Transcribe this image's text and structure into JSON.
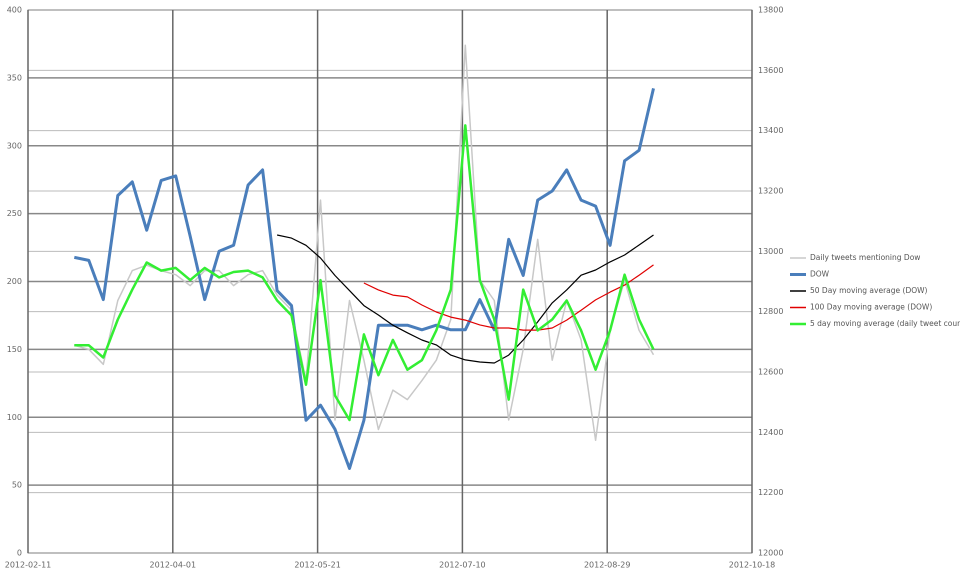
{
  "chart_data": {
    "type": "line",
    "x": [
      "2012-02-27",
      "2012-03-03",
      "2012-03-08",
      "2012-03-13",
      "2012-03-18",
      "2012-03-23",
      "2012-03-28",
      "2012-04-02",
      "2012-04-07",
      "2012-04-12",
      "2012-04-17",
      "2012-04-22",
      "2012-04-27",
      "2012-05-02",
      "2012-05-07",
      "2012-05-12",
      "2012-05-17",
      "2012-05-22",
      "2012-05-27",
      "2012-06-01",
      "2012-06-06",
      "2012-06-11",
      "2012-06-16",
      "2012-06-21",
      "2012-06-26",
      "2012-07-01",
      "2012-07-06",
      "2012-07-11",
      "2012-07-16",
      "2012-07-21",
      "2012-07-26",
      "2012-07-31",
      "2012-08-05",
      "2012-08-10",
      "2012-08-15",
      "2012-08-20",
      "2012-08-25",
      "2012-08-30",
      "2012-09-04",
      "2012-09-09",
      "2012-09-14"
    ],
    "series": [
      {
        "name": "Daily tweets mentioning Dow",
        "color": "#c8c8c8",
        "width": 1.5,
        "values": [
          153,
          150,
          139,
          186,
          208,
          212,
          208,
          205,
          197,
          208,
          208,
          197,
          205,
          208,
          190,
          179,
          127,
          260,
          98,
          186,
          142,
          91,
          120,
          113,
          127,
          142,
          172,
          374,
          201,
          186,
          98,
          150,
          231,
          142,
          186,
          157,
          83,
          164,
          201,
          164,
          146
        ]
      },
      {
        "name": "DOW",
        "color": "#4a7ebb",
        "width": 3,
        "axis": "y2",
        "values": [
          12980,
          12970,
          12840,
          13185,
          13230,
          13070,
          13235,
          13250,
          13050,
          12840,
          13000,
          13020,
          13220,
          13270,
          12870,
          12820,
          12440,
          12490,
          12410,
          12280,
          12440,
          12755,
          12755,
          12755,
          12740,
          12755,
          12740,
          12740,
          12840,
          12740,
          13040,
          12920,
          13170,
          13200,
          13270,
          13170,
          13150,
          13020,
          13300,
          13335,
          13540
        ]
      },
      {
        "name": "50 Day moving average (DOW)",
        "color": "#000000",
        "width": 1.2,
        "axis": "y2",
        "values": [
          null,
          null,
          null,
          null,
          null,
          null,
          null,
          null,
          null,
          null,
          null,
          null,
          null,
          null,
          13054,
          13044,
          13020,
          12978,
          12920,
          12870,
          12820,
          12789,
          12755,
          12730,
          12706,
          12690,
          12656,
          12640,
          12633,
          12630,
          12656,
          12706,
          12766,
          12829,
          12872,
          12921,
          12938,
          12965,
          12988,
          13021,
          13054
        ]
      },
      {
        "name": "100 Day moving average (DOW)",
        "color": "#e00000",
        "width": 1.2,
        "axis": "y2",
        "values": [
          null,
          null,
          null,
          null,
          null,
          null,
          null,
          null,
          null,
          null,
          null,
          null,
          null,
          null,
          null,
          null,
          null,
          null,
          null,
          null,
          12895,
          12872,
          12855,
          12849,
          12822,
          12799,
          12782,
          12772,
          12756,
          12746,
          12746,
          12739,
          12739,
          12746,
          12772,
          12805,
          12839,
          12865,
          12888,
          12921,
          12955
        ]
      },
      {
        "name": "5 day moving average (daily tweet count)",
        "color": "#33ee33",
        "width": 2.5,
        "values": [
          153,
          153,
          144,
          172,
          194,
          214,
          208,
          210,
          201,
          210,
          203,
          207,
          208,
          203,
          186,
          175,
          124,
          201,
          116,
          98,
          161,
          131,
          157,
          135,
          142,
          164,
          194,
          315,
          201,
          172,
          113,
          194,
          164,
          172,
          186,
          164,
          135,
          164,
          205,
          172,
          150
        ]
      }
    ],
    "xlim": [
      "2012-02-11",
      "2012-10-18"
    ],
    "xticks": [
      "2012-02-11",
      "2012-04-01",
      "2012-05-21",
      "2012-07-10",
      "2012-08-29",
      "2012-10-18"
    ],
    "ylim": [
      0,
      400
    ],
    "yticks": [
      0,
      50,
      100,
      150,
      200,
      250,
      300,
      350,
      400
    ],
    "y2lim": [
      12000,
      13800
    ],
    "y2ticks": [
      12000,
      12200,
      12400,
      12600,
      12800,
      13000,
      13200,
      13400,
      13600,
      13800
    ],
    "grid": true,
    "legend": "right"
  }
}
